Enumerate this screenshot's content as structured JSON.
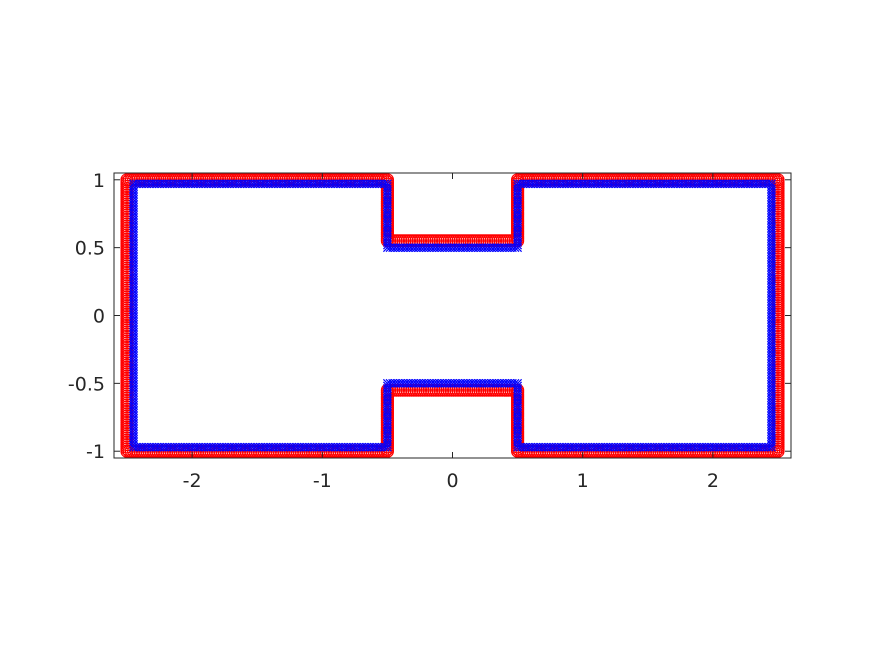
{
  "chart_data": {
    "type": "scatter",
    "title": "",
    "xlabel": "",
    "ylabel": "",
    "xlim": [
      -2.6,
      2.6
    ],
    "ylim": [
      -1.05,
      1.05
    ],
    "xticks": [
      {
        "value": -2,
        "label": "-2"
      },
      {
        "value": -1,
        "label": "-1"
      },
      {
        "value": 0,
        "label": "0"
      },
      {
        "value": 1,
        "label": "1"
      },
      {
        "value": 2,
        "label": "2"
      }
    ],
    "yticks": [
      {
        "value": 1,
        "label": "1"
      },
      {
        "value": 0.5,
        "label": "0.5"
      },
      {
        "value": 0,
        "label": "0"
      },
      {
        "value": -0.5,
        "label": "-0.5"
      },
      {
        "value": -1,
        "label": "-1"
      }
    ],
    "grid": false,
    "legend": "none",
    "series": [
      {
        "marker": "circle",
        "color": "#ff0000",
        "outline": [
          [
            -2.5,
            1.0
          ],
          [
            -0.5,
            1.0
          ],
          [
            -0.5,
            0.55
          ],
          [
            0.5,
            0.55
          ],
          [
            0.5,
            1.0
          ],
          [
            2.5,
            1.0
          ],
          [
            2.5,
            -1.0
          ],
          [
            0.5,
            -1.0
          ],
          [
            0.5,
            -0.55
          ],
          [
            -0.5,
            -0.55
          ],
          [
            -0.5,
            -1.0
          ],
          [
            -2.5,
            -1.0
          ],
          [
            -2.5,
            1.0
          ]
        ]
      },
      {
        "marker": "x",
        "color": "#0000ff",
        "outline": [
          [
            -2.45,
            0.97
          ],
          [
            -0.5,
            0.97
          ],
          [
            -0.5,
            0.5
          ],
          [
            0.5,
            0.5
          ],
          [
            0.5,
            0.97
          ],
          [
            2.45,
            0.97
          ],
          [
            2.45,
            -0.97
          ],
          [
            0.5,
            -0.97
          ],
          [
            0.5,
            -0.5
          ],
          [
            -0.5,
            -0.5
          ],
          [
            -0.5,
            -0.97
          ],
          [
            -2.45,
            -0.97
          ],
          [
            -2.45,
            0.97
          ]
        ]
      }
    ]
  }
}
